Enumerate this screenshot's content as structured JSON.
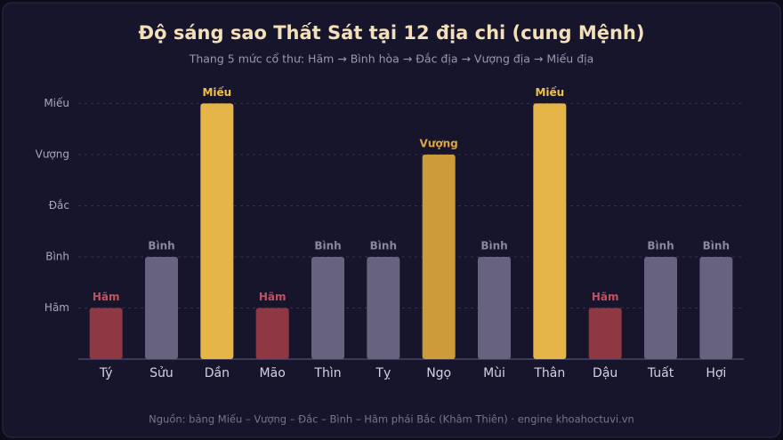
{
  "chart_data": {
    "type": "bar",
    "title": "Độ sáng sao Thất Sát tại 12 địa chi (cung Mệnh)",
    "subtitle": "Thang 5 mức cổ thư: Hãm → Bình hòa → Đắc địa → Vượng địa → Miếu địa",
    "footer": "Nguồn: bảng Miếu – Vượng – Đắc – Bình – Hãm phái Bắc (Khâm Thiên) · engine khoahoctuvi.vn",
    "categories": [
      "Tý",
      "Sửu",
      "Dần",
      "Mão",
      "Thìn",
      "Tỵ",
      "Ngọ",
      "Mùi",
      "Thân",
      "Dậu",
      "Tuất",
      "Hợi"
    ],
    "values": [
      1,
      2,
      5,
      1,
      2,
      2,
      4,
      2,
      5,
      1,
      2,
      2
    ],
    "value_labels": [
      "Hãm",
      "Bình",
      "Miếu",
      "Hãm",
      "Bình",
      "Bình",
      "Vượng",
      "Bình",
      "Miếu",
      "Hãm",
      "Bình",
      "Bình"
    ],
    "colors": [
      "#8e3844",
      "#67627d",
      "#e6b548",
      "#8e3844",
      "#67627d",
      "#67627d",
      "#cd9c3a",
      "#67627d",
      "#e6b548",
      "#8e3844",
      "#67627d",
      "#67627d"
    ],
    "label_colors": [
      "#c4505e",
      "#8b87a0",
      "#f0c04c",
      "#c4505e",
      "#8b87a0",
      "#8b87a0",
      "#dca640",
      "#8b87a0",
      "#f0c04c",
      "#c4505e",
      "#8b87a0",
      "#8b87a0"
    ],
    "ylim": [
      0,
      5
    ],
    "yticks": [
      {
        "value": 1,
        "label": "Hãm"
      },
      {
        "value": 2,
        "label": "Bình"
      },
      {
        "value": 3,
        "label": "Đắc"
      },
      {
        "value": 4,
        "label": "Vượng"
      },
      {
        "value": 5,
        "label": "Miếu"
      }
    ],
    "grid": true
  }
}
